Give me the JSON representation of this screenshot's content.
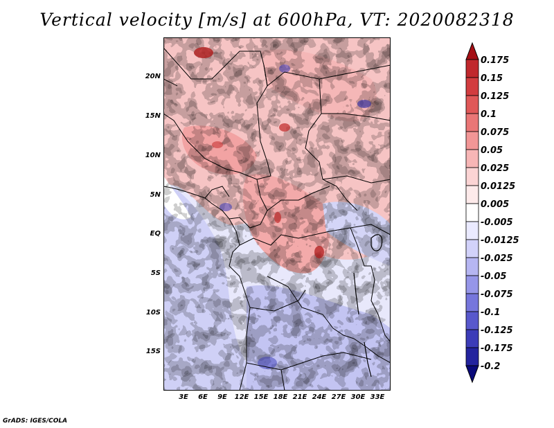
{
  "title": "Vertical velocity [m/s] at 600hPa, VT: 2020082318",
  "footer": "GrADS: IGES/COLA",
  "map": {
    "lat_labels": [
      "20N",
      "15N",
      "10N",
      "5N",
      "EQ",
      "5S",
      "10S",
      "15S"
    ],
    "lon_labels": [
      "3E",
      "6E",
      "9E",
      "12E",
      "15E",
      "18E",
      "21E",
      "24E",
      "27E",
      "30E",
      "33E"
    ]
  },
  "colorbar": {
    "labels": [
      "0.175",
      "0.15",
      "0.125",
      "0.1",
      "0.075",
      "0.05",
      "0.025",
      "0.0125",
      "0.005",
      "-0.005",
      "-0.0125",
      "-0.025",
      "-0.05",
      "-0.075",
      "-0.1",
      "-0.125",
      "-0.175",
      "-0.2"
    ],
    "colors": [
      "#ffffff",
      "#a50f15",
      "#c0282d",
      "#d23c3f",
      "#e05858",
      "#ea7676",
      "#f29696",
      "#f7b6b6",
      "#fbd4d4",
      "#fdeaea",
      "#ffffff",
      "#eaeaff",
      "#d2d2fa",
      "#b6b6f2",
      "#9696e8",
      "#7676dc",
      "#5858cc",
      "#3c3cb8",
      "#23239e",
      "#0a0a7a"
    ]
  }
}
